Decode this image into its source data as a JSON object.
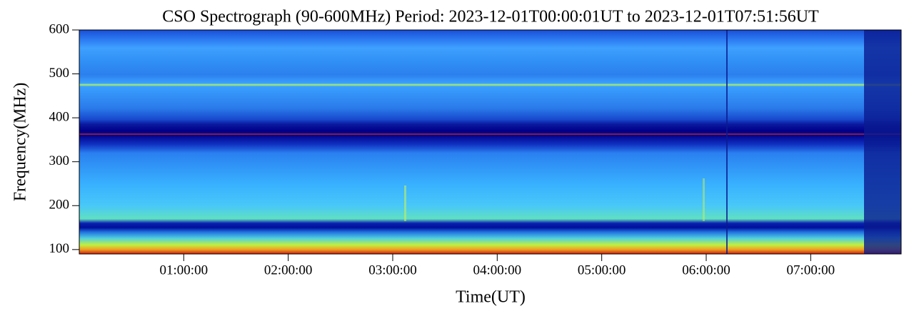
{
  "chart_data": {
    "type": "spectrogram",
    "title": "CSO Spectrograph (90-600MHz) Period: 2023-12-01T00:00:01UT to 2023-12-01T07:51:56UT",
    "x_label": "Time(UT)",
    "y_label": "Frequency(MHz)",
    "xlim": [
      1,
      28316
    ],
    "xticks": [
      {
        "value": 3600,
        "label": "01:00:00"
      },
      {
        "value": 7200,
        "label": "02:00:00"
      },
      {
        "value": 10800,
        "label": "03:00:00"
      },
      {
        "value": 14400,
        "label": "04:00:00"
      },
      {
        "value": 18000,
        "label": "05:00:00"
      },
      {
        "value": 21600,
        "label": "06:00:00"
      },
      {
        "value": 25200,
        "label": "07:00:00"
      }
    ],
    "ylim": [
      90,
      600
    ],
    "yticks": [
      100,
      200,
      300,
      400,
      500,
      600
    ]
  }
}
